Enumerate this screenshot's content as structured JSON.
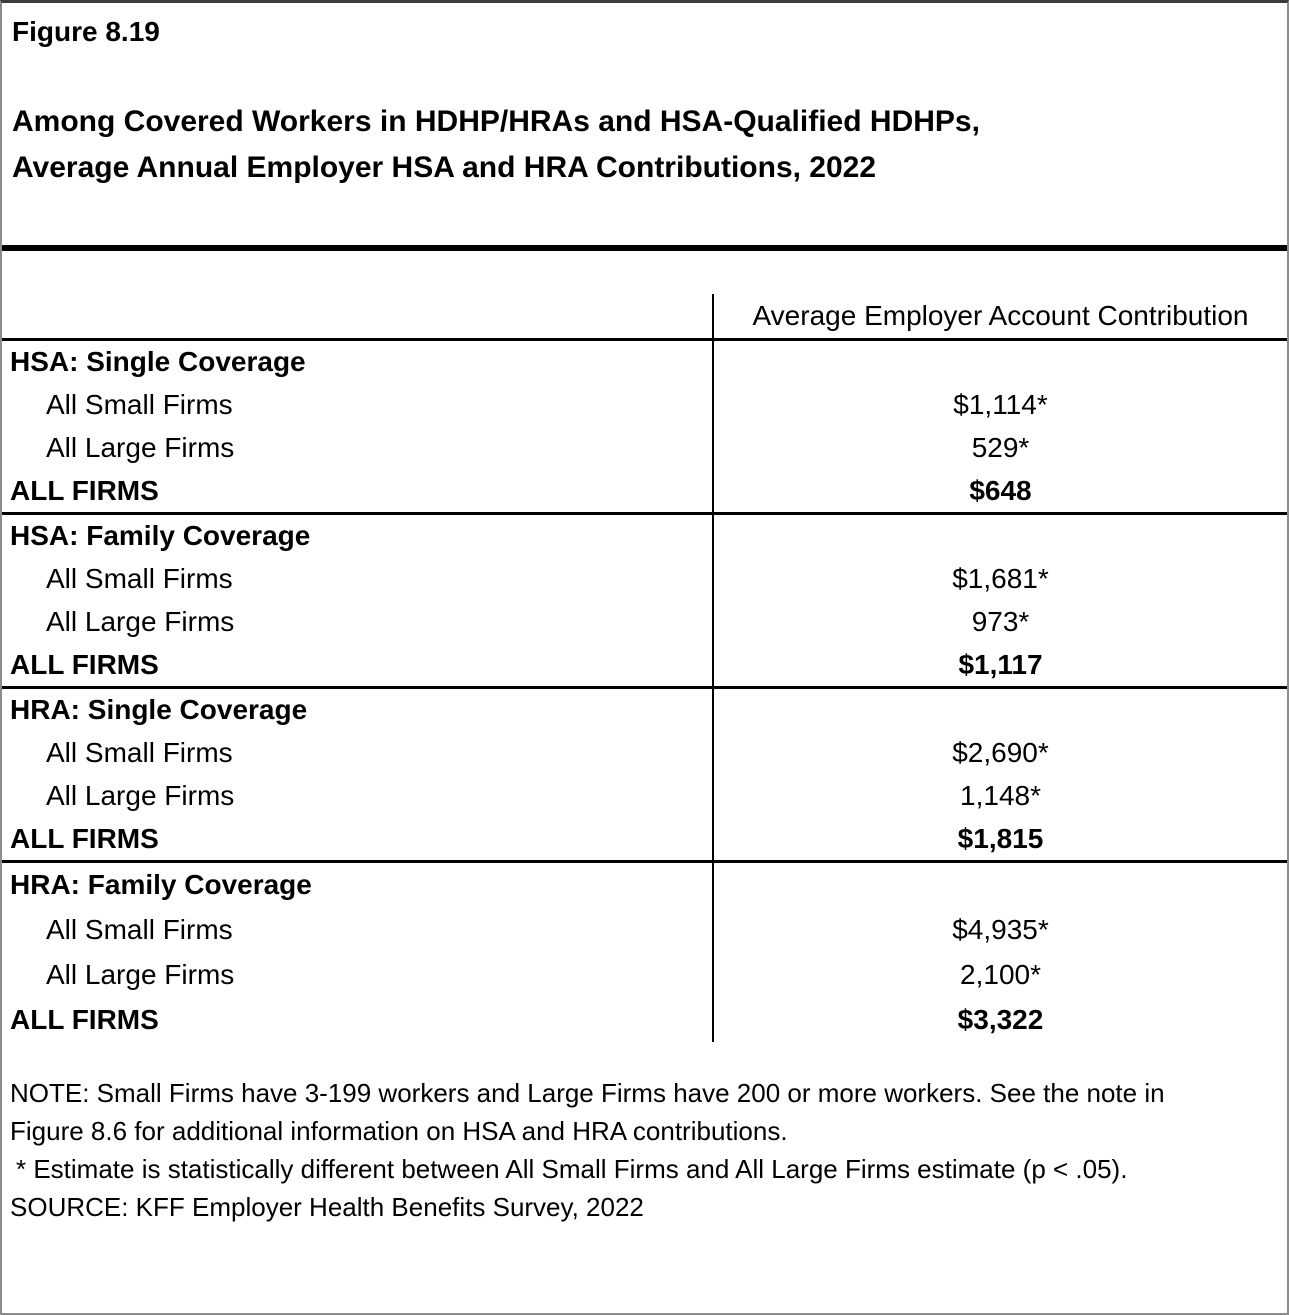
{
  "figure": {
    "number": "Figure 8.19",
    "title_line1": "Among Covered Workers in HDHP/HRAs and HSA-Qualified HDHPs,",
    "title_line2": "Average Annual Employer HSA and HRA Contributions, 2022"
  },
  "table": {
    "column_header": "Average Employer Account Contribution",
    "groups": [
      {
        "header": "HSA: Single Coverage",
        "rows": [
          {
            "label": "All Small Firms",
            "value": "$1,114*"
          },
          {
            "label": "All Large Firms",
            "value": "529*"
          },
          {
            "label": "ALL FIRMS",
            "value": "$648"
          }
        ]
      },
      {
        "header": "HSA: Family Coverage",
        "rows": [
          {
            "label": "All Small Firms",
            "value": "$1,681*"
          },
          {
            "label": "All Large Firms",
            "value": "973*"
          },
          {
            "label": "ALL FIRMS",
            "value": "$1,117"
          }
        ]
      },
      {
        "header": "HRA: Single Coverage",
        "rows": [
          {
            "label": "All Small Firms",
            "value": "$2,690*"
          },
          {
            "label": "All Large Firms",
            "value": "1,148*"
          },
          {
            "label": "ALL FIRMS",
            "value": "$1,815"
          }
        ]
      },
      {
        "header": "HRA: Family Coverage",
        "rows": [
          {
            "label": "All Small Firms",
            "value": "$4,935*"
          },
          {
            "label": "All Large Firms",
            "value": "2,100*"
          },
          {
            "label": "ALL FIRMS",
            "value": "$3,322"
          }
        ]
      }
    ]
  },
  "notes": {
    "note_line1": "NOTE: Small Firms have 3-199 workers and Large Firms have 200 or more workers. See the note in",
    "note_line2": "Figure 8.6 for additional information on HSA and HRA contributions.",
    "asterisk": "* Estimate is statistically different between All Small Firms and All Large Firms estimate (p < .05).",
    "source": "SOURCE: KFF Employer Health Benefits Survey, 2022"
  }
}
